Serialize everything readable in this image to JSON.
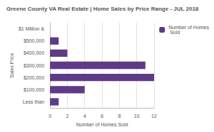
{
  "chart_data": {
    "type": "bar",
    "orientation": "horizontal",
    "title": "Greene County VA Real Estate | Home Sales by Price Range - JUL 2018",
    "xlabel": "Number of Homes Sold",
    "ylabel": "Sales Price",
    "categories": [
      "Less than",
      "$100,000",
      "$200,000",
      "$300,000",
      "$400,000",
      "$500,000",
      "$1 Million &"
    ],
    "series": [
      {
        "name": "Number of Homes Sold",
        "color": "#5e3a87",
        "values": [
          1,
          4,
          12,
          11,
          2,
          1,
          0
        ]
      }
    ],
    "xlim": [
      0,
      12
    ],
    "xticks": [
      0,
      2,
      4,
      6,
      8,
      10,
      12
    ],
    "grid": true,
    "legend": "top-right"
  }
}
